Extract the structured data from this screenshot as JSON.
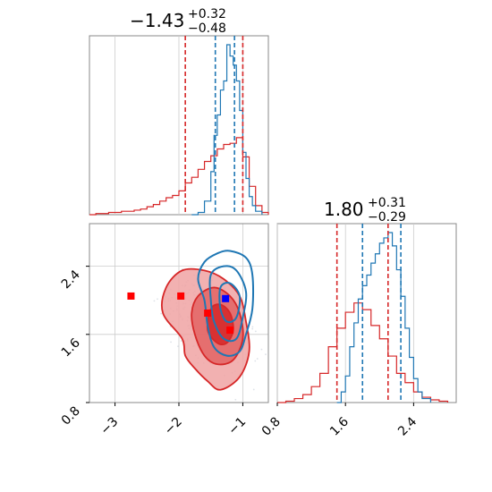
{
  "colors": {
    "red": "#d62728",
    "blue": "#1f77b4",
    "red_fill_light": "#f0a3a3",
    "red_fill_dark": "#d62728",
    "point_red": "#ff0000",
    "point_blue": "#0000ff",
    "grid": "#cccccc",
    "frame": "#888888"
  },
  "chart_data": {
    "type": "corner",
    "parameters": [
      {
        "title_value": "1.43",
        "title_sign": "−",
        "title_plus": "+0.32",
        "title_minus": "−0.48",
        "range": [
          -3.4,
          -0.6
        ],
        "ticks": [
          -3,
          -2,
          -1
        ],
        "tick_labels": [
          "−3",
          "−2",
          "−1"
        ],
        "median": -1.43,
        "quantiles_red": [
          -1.9,
          -1.0
        ],
        "quantiles_blue": [
          -1.43,
          -1.13
        ],
        "hist_red": [
          [
            -3.4,
            0
          ],
          [
            -3.3,
            1
          ],
          [
            -3.2,
            1
          ],
          [
            -3.1,
            2
          ],
          [
            -3.0,
            2
          ],
          [
            -2.9,
            3
          ],
          [
            -2.8,
            3
          ],
          [
            -2.7,
            4
          ],
          [
            -2.6,
            5
          ],
          [
            -2.5,
            7
          ],
          [
            -2.4,
            9
          ],
          [
            -2.3,
            12
          ],
          [
            -2.2,
            15
          ],
          [
            -2.1,
            17
          ],
          [
            -2.0,
            21
          ],
          [
            -1.9,
            28
          ],
          [
            -1.8,
            33
          ],
          [
            -1.7,
            40
          ],
          [
            -1.6,
            47
          ],
          [
            -1.5,
            52
          ],
          [
            -1.4,
            58
          ],
          [
            -1.3,
            62
          ],
          [
            -1.2,
            63
          ],
          [
            -1.1,
            68
          ],
          [
            -1.0,
            51
          ],
          [
            -0.9,
            25
          ],
          [
            -0.8,
            8
          ],
          [
            -0.7,
            2
          ],
          [
            -0.6,
            0
          ]
        ],
        "hist_blue": [
          [
            -1.8,
            0
          ],
          [
            -1.7,
            2
          ],
          [
            -1.6,
            12
          ],
          [
            -1.5,
            38
          ],
          [
            -1.45,
            70
          ],
          [
            -1.4,
            88
          ],
          [
            -1.35,
            110
          ],
          [
            -1.3,
            118
          ],
          [
            -1.25,
            150
          ],
          [
            -1.2,
            140
          ],
          [
            -1.15,
            132
          ],
          [
            -1.1,
            118
          ],
          [
            -1.05,
            92
          ],
          [
            -1.0,
            55
          ],
          [
            -0.95,
            32
          ],
          [
            -0.9,
            16
          ],
          [
            -0.85,
            8
          ],
          [
            -0.8,
            3
          ],
          [
            -0.7,
            0
          ]
        ]
      },
      {
        "title_value": "1.80",
        "title_sign": "",
        "title_plus": "+0.31",
        "title_minus": "−0.29",
        "range": [
          0.8,
          2.9
        ],
        "ticks": [
          0.8,
          1.6,
          2.4
        ],
        "tick_labels": [
          "0.8",
          "1.6",
          "2.4"
        ],
        "quantiles_red": [
          1.5,
          2.1
        ],
        "quantiles_blue": [
          1.8,
          2.25
        ],
        "hist_red": [
          [
            0.8,
            0
          ],
          [
            0.9,
            1
          ],
          [
            1.0,
            3
          ],
          [
            1.1,
            6
          ],
          [
            1.2,
            12
          ],
          [
            1.3,
            22
          ],
          [
            1.4,
            42
          ],
          [
            1.5,
            56
          ],
          [
            1.6,
            68
          ],
          [
            1.7,
            75
          ],
          [
            1.8,
            70
          ],
          [
            1.9,
            58
          ],
          [
            2.0,
            48
          ],
          [
            2.1,
            35
          ],
          [
            2.2,
            22
          ],
          [
            2.3,
            15
          ],
          [
            2.4,
            8
          ],
          [
            2.5,
            4
          ],
          [
            2.6,
            2
          ],
          [
            2.7,
            1
          ],
          [
            2.8,
            0
          ]
        ],
        "hist_blue": [
          [
            1.5,
            0
          ],
          [
            1.55,
            8
          ],
          [
            1.6,
            20
          ],
          [
            1.65,
            42
          ],
          [
            1.7,
            60
          ],
          [
            1.75,
            78
          ],
          [
            1.8,
            88
          ],
          [
            1.85,
            96
          ],
          [
            1.9,
            105
          ],
          [
            1.95,
            112
          ],
          [
            2.0,
            120
          ],
          [
            2.05,
            124
          ],
          [
            2.1,
            128
          ],
          [
            2.15,
            118
          ],
          [
            2.2,
            100
          ],
          [
            2.25,
            80
          ],
          [
            2.3,
            56
          ],
          [
            2.35,
            34
          ],
          [
            2.4,
            18
          ],
          [
            2.45,
            8
          ],
          [
            2.5,
            3
          ],
          [
            2.6,
            0
          ]
        ]
      }
    ],
    "scatter_points": [
      {
        "x": -2.75,
        "y": 2.05,
        "color": "red"
      },
      {
        "x": -1.97,
        "y": 2.05,
        "color": "red"
      },
      {
        "x": -1.55,
        "y": 1.85,
        "color": "red"
      },
      {
        "x": -1.2,
        "y": 1.65,
        "color": "red"
      },
      {
        "x": -1.27,
        "y": 2.02,
        "color": "blue"
      }
    ],
    "contours_red": [
      [
        [
          -1.95,
          1.55
        ],
        [
          -1.9,
          1.35
        ],
        [
          -1.75,
          1.2
        ],
        [
          -1.55,
          1.05
        ],
        [
          -1.35,
          0.95
        ],
        [
          -1.05,
          1.1
        ],
        [
          -0.9,
          1.4
        ],
        [
          -0.95,
          1.75
        ],
        [
          -1.05,
          2.05
        ],
        [
          -1.3,
          2.25
        ],
        [
          -1.6,
          2.35
        ],
        [
          -1.95,
          2.35
        ],
        [
          -2.2,
          2.15
        ],
        [
          -2.25,
          1.85
        ]
      ],
      [
        [
          -1.75,
          1.6
        ],
        [
          -1.6,
          1.35
        ],
        [
          -1.4,
          1.25
        ],
        [
          -1.15,
          1.3
        ],
        [
          -1.0,
          1.55
        ],
        [
          -1.05,
          1.85
        ],
        [
          -1.2,
          2.05
        ],
        [
          -1.45,
          2.15
        ],
        [
          -1.7,
          2.05
        ],
        [
          -1.8,
          1.85
        ]
      ],
      [
        [
          -1.55,
          1.65
        ],
        [
          -1.4,
          1.5
        ],
        [
          -1.25,
          1.5
        ],
        [
          -1.15,
          1.65
        ],
        [
          -1.2,
          1.85
        ],
        [
          -1.35,
          1.95
        ],
        [
          -1.5,
          1.9
        ]
      ]
    ],
    "contours_blue": [
      [
        [
          -1.6,
          2.45
        ],
        [
          -1.4,
          2.55
        ],
        [
          -1.2,
          2.58
        ],
        [
          -0.95,
          2.5
        ],
        [
          -0.85,
          2.3
        ],
        [
          -0.85,
          1.9
        ],
        [
          -0.95,
          1.6
        ],
        [
          -1.05,
          1.4
        ],
        [
          -1.25,
          1.35
        ],
        [
          -1.45,
          1.45
        ],
        [
          -1.55,
          1.7
        ],
        [
          -1.6,
          2.0
        ],
        [
          -1.7,
          2.25
        ]
      ],
      [
        [
          -1.5,
          2.3
        ],
        [
          -1.3,
          2.4
        ],
        [
          -1.1,
          2.35
        ],
        [
          -0.95,
          2.1
        ],
        [
          -1.0,
          1.8
        ],
        [
          -1.1,
          1.55
        ],
        [
          -1.3,
          1.55
        ],
        [
          -1.45,
          1.75
        ],
        [
          -1.5,
          2.0
        ]
      ],
      [
        [
          -1.35,
          2.15
        ],
        [
          -1.2,
          2.2
        ],
        [
          -1.05,
          2.05
        ],
        [
          -1.1,
          1.8
        ],
        [
          -1.25,
          1.75
        ],
        [
          -1.35,
          1.9
        ]
      ]
    ],
    "grid": true
  }
}
